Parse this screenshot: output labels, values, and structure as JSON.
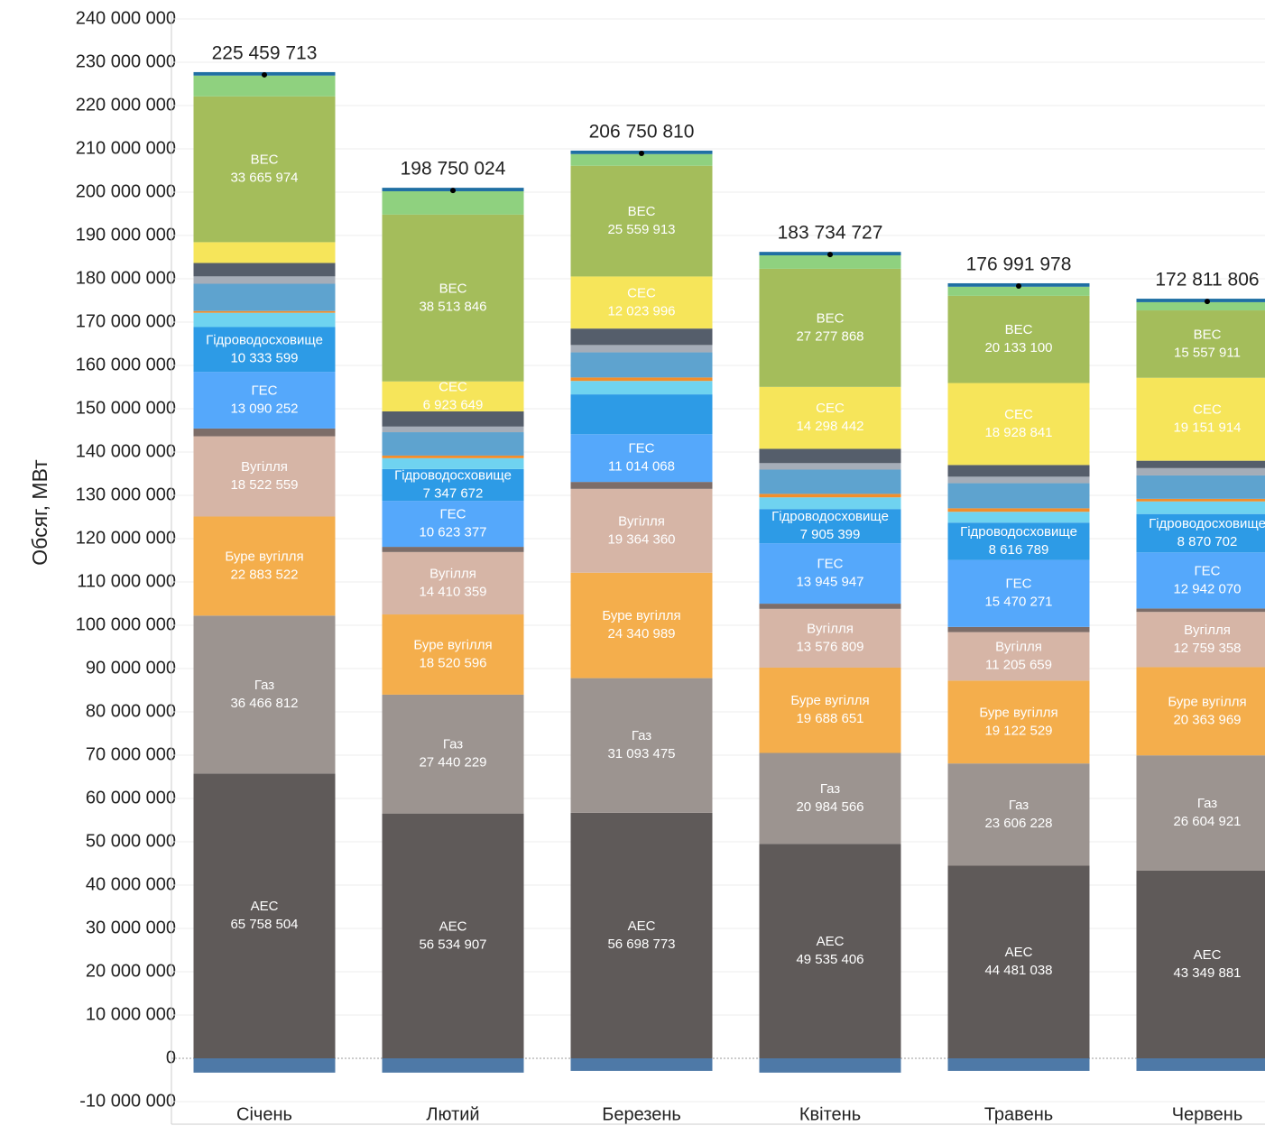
{
  "chart_data": {
    "type": "stacked_bar",
    "y_label": "Обсяг, МВт",
    "categories": [
      "Січень",
      "Лютий",
      "Березень",
      "Квітень",
      "Травень",
      "Червень"
    ],
    "ylim": [
      -10000000,
      240000000
    ],
    "yticks": [
      {
        "value": -10000000,
        "label": "-10 000 000"
      },
      0,
      {
        "value": 10000000,
        "label": "10 000 000"
      },
      {
        "value": 20000000,
        "label": "20 000 000"
      },
      {
        "value": 30000000,
        "label": "30 000 000"
      },
      {
        "value": 40000000,
        "label": "40 000 000"
      },
      {
        "value": 50000000,
        "label": "50 000 000"
      },
      {
        "value": 60000000,
        "label": "60 000 000"
      },
      {
        "value": 70000000,
        "label": "70 000 000"
      },
      {
        "value": 80000000,
        "label": "80 000 000"
      },
      {
        "value": 90000000,
        "label": "90 000 000"
      },
      {
        "value": 100000000,
        "label": "100 000 000"
      },
      {
        "value": 110000000,
        "label": "110 000 000"
      },
      {
        "value": 120000000,
        "label": "120 000 000"
      },
      {
        "value": 130000000,
        "label": "130 000 000"
      },
      {
        "value": 140000000,
        "label": "140 000 000"
      },
      {
        "value": 150000000,
        "label": "150 000 000"
      },
      {
        "value": 160000000,
        "label": "160 000 000"
      },
      {
        "value": 170000000,
        "label": "170 000 000"
      },
      {
        "value": 180000000,
        "label": "180 000 000"
      },
      {
        "value": 190000000,
        "label": "190 000 000"
      },
      {
        "value": 200000000,
        "label": "200 000 000"
      },
      {
        "value": 210000000,
        "label": "210 000 000"
      },
      {
        "value": 220000000,
        "label": "220 000 000"
      },
      {
        "value": 230000000,
        "label": "230 000 000"
      },
      {
        "value": 240000000,
        "label": "240 000 000"
      }
    ],
    "grid": true,
    "totals": [
      225459713,
      198750024,
      206750810,
      183734727,
      176991978,
      172811806
    ],
    "total_labels": [
      "225 459 713",
      "198 750 024",
      "206 750 810",
      "183 734 727",
      "176 991 978",
      "172 811 806"
    ],
    "series": [
      {
        "color": "#4e79a7",
        "values": [
          -3300000,
          -3300000,
          -2900000,
          -3300000,
          -2900000,
          -2900000
        ]
      },
      {
        "name": "АЕС",
        "color": "#5f5a59",
        "values": [
          65758504,
          56534907,
          56698773,
          49535406,
          44481038,
          43349881
        ],
        "value_labels": [
          "65 758 504",
          "56 534 907",
          "56 698 773",
          "49 535 406",
          "44 481 038",
          "43 349 881"
        ]
      },
      {
        "name": "Газ",
        "color": "#9c9490",
        "values": [
          36466812,
          27440229,
          31093475,
          20984566,
          23606228,
          26604921
        ],
        "value_labels": [
          "36 466 812",
          "27 440 229",
          "31 093 475",
          "20 984 566",
          "23 606 228",
          "26 604 921"
        ]
      },
      {
        "name": "Буре вугілля",
        "color": "#f4ae4c",
        "values": [
          22883522,
          18520596,
          24340989,
          19688651,
          19122529,
          20363969
        ],
        "value_labels": [
          "22 883 522",
          "18 520 596",
          "24 340 989",
          "19 688 651",
          "19 122 529",
          "20 363 969"
        ]
      },
      {
        "name": "Вугілля",
        "color": "#d6b5a6",
        "values": [
          18522559,
          14410359,
          19364360,
          13576809,
          11205659,
          12759358
        ],
        "value_labels": [
          "18 522 559",
          "14 410 359",
          "19 364 360",
          "13 576 809",
          "11 205 659",
          "12 759 358"
        ]
      },
      {
        "color": "#7d6d68",
        "values": [
          1800000,
          1200000,
          1600000,
          1200000,
          1200000,
          800000
        ]
      },
      {
        "name": "ГЕС",
        "color": "#55a8fb",
        "values": [
          13090252,
          10623377,
          11014068,
          13945947,
          15470271,
          12942070
        ],
        "value_labels": [
          "13 090 252",
          "10 623 377",
          "11 014 068",
          "13 945 947",
          "15 470 271",
          "12 942 070"
        ]
      },
      {
        "name": "Гідроводосховище",
        "color": "#2d9be6",
        "values": [
          10333599,
          7347672,
          9200000,
          7905399,
          8616789,
          8870702
        ],
        "value_labels": [
          "10 333 599",
          "7 347 672",
          null,
          "7 905 399",
          "8 616 789",
          "8 870 702"
        ]
      },
      {
        "color": "#6fd3f0",
        "values": [
          3300000,
          2500000,
          3100000,
          2700000,
          2500000,
          2900000
        ]
      },
      {
        "color": "#f28e2b",
        "values": [
          400000,
          600000,
          800000,
          800000,
          800000,
          600000
        ]
      },
      {
        "color": "#5ea3cf",
        "values": [
          6300000,
          5400000,
          5800000,
          5600000,
          5800000,
          5400000
        ]
      },
      {
        "color": "#a5adb8",
        "values": [
          1700000,
          1300000,
          1700000,
          1500000,
          1500000,
          1700000
        ]
      },
      {
        "color": "#555e6b",
        "values": [
          3100000,
          3500000,
          3800000,
          3300000,
          2700000,
          1700000
        ]
      },
      {
        "name": "СЕС",
        "color": "#f6e55a",
        "values": [
          4800000,
          6923649,
          12023996,
          14298442,
          18928841,
          19151914
        ],
        "value_labels": [
          null,
          "6 923 649",
          "12 023 996",
          "14 298 442",
          "18 928 841",
          "19 151 914"
        ]
      },
      {
        "name": "ВЕС",
        "color": "#a4bd5b",
        "values": [
          33665974,
          38513846,
          25559913,
          27277868,
          20133100,
          15557911
        ],
        "value_labels": [
          "33 665 974",
          "38 513 846",
          "25 559 913",
          "27 277 868",
          "20 133 100",
          "15 557 911"
        ]
      },
      {
        "color": "#8fd17f",
        "values": [
          4800000,
          5400000,
          2700000,
          3100000,
          2100000,
          1900000
        ]
      },
      {
        "color": "#1f6fa3",
        "values": [
          800000,
          800000,
          800000,
          800000,
          800000,
          800000
        ]
      }
    ]
  }
}
